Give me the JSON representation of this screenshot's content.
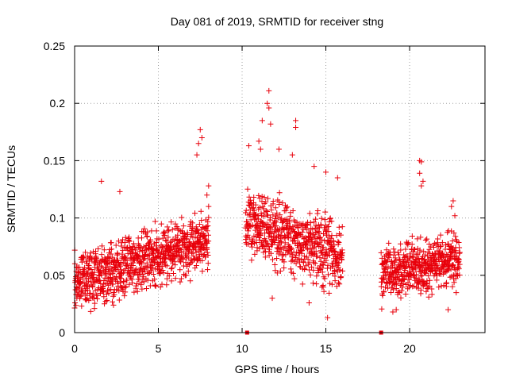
{
  "chart_data": {
    "type": "scatter",
    "title": "Day 081 of 2019, SRMTID for receiver stng",
    "xlabel": "GPS time / hours",
    "ylabel": "SRMTID / TECUs",
    "xlim": [
      0,
      24.5
    ],
    "ylim": [
      0,
      0.25
    ],
    "xticks": [
      0,
      5,
      10,
      15,
      20
    ],
    "xtick_labels": [
      "0",
      "5",
      "10",
      "15",
      "20"
    ],
    "yticks": [
      0,
      0.05,
      0.1,
      0.15,
      0.2,
      0.25
    ],
    "ytick_labels": [
      "0",
      "0.05",
      "0.1",
      "0.15",
      "0.2",
      "0.25"
    ],
    "grid": true,
    "marker": "+",
    "color": "#e8000b",
    "series": [
      {
        "name": "SRMTID",
        "segments": [
          {
            "t_start": 0.0,
            "t_end": 8.0,
            "base": 0.045,
            "rise": 0.035,
            "spread": 0.022,
            "n": 900
          },
          {
            "t_start": 10.2,
            "t_end": 16.0,
            "base": 0.095,
            "rise": -0.03,
            "spread": 0.025,
            "n": 620
          },
          {
            "t_start": 18.3,
            "t_end": 23.0,
            "base": 0.05,
            "rise": 0.015,
            "spread": 0.02,
            "n": 520
          }
        ],
        "highlights": [
          {
            "x": 7.5,
            "y": 0.177
          },
          {
            "x": 7.6,
            "y": 0.17
          },
          {
            "x": 7.4,
            "y": 0.165
          },
          {
            "x": 7.3,
            "y": 0.155
          },
          {
            "x": 1.6,
            "y": 0.132
          },
          {
            "x": 2.7,
            "y": 0.123
          },
          {
            "x": 11.6,
            "y": 0.211
          },
          {
            "x": 11.5,
            "y": 0.2
          },
          {
            "x": 11.6,
            "y": 0.196
          },
          {
            "x": 11.2,
            "y": 0.185
          },
          {
            "x": 13.2,
            "y": 0.185
          },
          {
            "x": 13.2,
            "y": 0.179
          },
          {
            "x": 11.7,
            "y": 0.182
          },
          {
            "x": 11.0,
            "y": 0.167
          },
          {
            "x": 11.1,
            "y": 0.16
          },
          {
            "x": 10.4,
            "y": 0.163
          },
          {
            "x": 12.2,
            "y": 0.16
          },
          {
            "x": 13.0,
            "y": 0.155
          },
          {
            "x": 14.3,
            "y": 0.145
          },
          {
            "x": 15.7,
            "y": 0.135
          },
          {
            "x": 15.0,
            "y": 0.14
          },
          {
            "x": 11.8,
            "y": 0.03
          },
          {
            "x": 14.0,
            "y": 0.026
          },
          {
            "x": 15.1,
            "y": 0.013
          },
          {
            "x": 20.6,
            "y": 0.15
          },
          {
            "x": 20.7,
            "y": 0.149
          },
          {
            "x": 20.6,
            "y": 0.139
          },
          {
            "x": 20.8,
            "y": 0.132
          },
          {
            "x": 20.7,
            "y": 0.128
          },
          {
            "x": 22.7,
            "y": 0.102
          },
          {
            "x": 22.6,
            "y": 0.115
          },
          {
            "x": 22.5,
            "y": 0.11
          },
          {
            "x": 22.3,
            "y": 0.02
          },
          {
            "x": 19.0,
            "y": 0.018
          },
          {
            "x": 19.2,
            "y": 0.02
          },
          {
            "x": 8.0,
            "y": 0.128
          },
          {
            "x": 7.9,
            "y": 0.12
          },
          {
            "x": 8.0,
            "y": 0.11
          }
        ],
        "zero_markers": [
          {
            "x": 10.3,
            "y": 0.0
          },
          {
            "x": 18.3,
            "y": 0.0
          }
        ]
      }
    ]
  }
}
